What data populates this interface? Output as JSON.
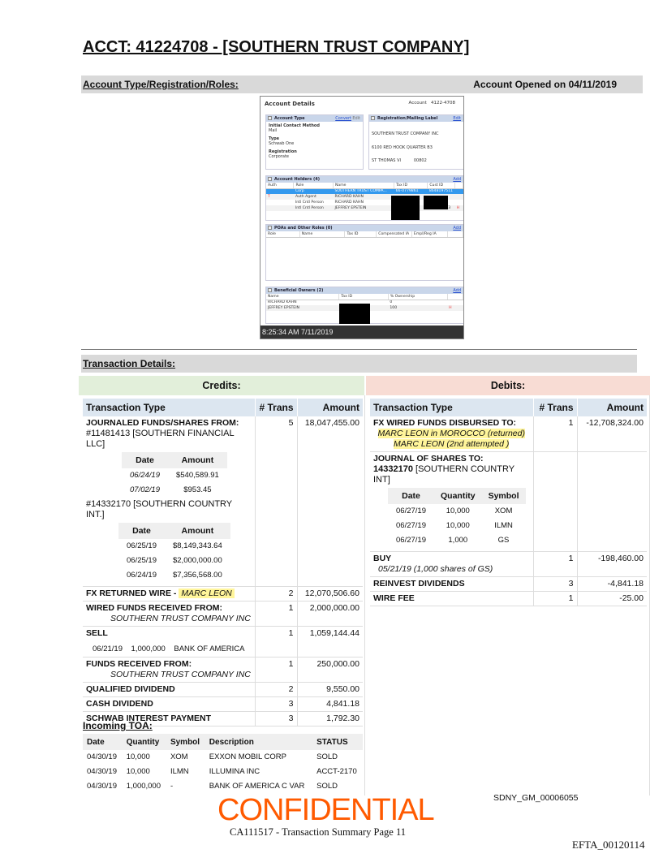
{
  "title": "ACCT: 41224708 - [SOUTHERN TRUST COMPANY]",
  "account_bar": {
    "label": "Account Type/Registration/Roles:",
    "opened": "Account Opened on 04/11/2019"
  },
  "screenshot": {
    "heading": "Account Details",
    "account_label": "Account",
    "account_no": "4122-4708",
    "account_type": {
      "title": "Account Type",
      "convert": "Convert",
      "edit": "Edit",
      "fields": [
        {
          "k": "Initial Contact Method",
          "v": "Mail"
        },
        {
          "k": "Type",
          "v": "Schwab One"
        },
        {
          "k": "Registration",
          "v": "Corporate"
        }
      ]
    },
    "registration": {
      "title": "Registration/Mailing Label",
      "edit": "Edit",
      "lines": [
        "SOUTHERN TRUST COMPANY INC",
        "6100 RED HOOK QUARTER B3",
        "ST THOMAS VI          00802"
      ]
    },
    "holders": {
      "title": "Account Holders (4)",
      "add": "Add",
      "cols": [
        "Auth",
        "Role",
        "Name",
        "Tax ID",
        "Cust ID"
      ],
      "rows": [
        [
          "",
          "Corp",
          "SOUTHERN TRUST COMPA...",
          "66-0779861",
          "8648197511",
          ""
        ],
        [
          "T",
          "Auth Agent",
          "RICHARD KAHN",
          "",
          "",
          ""
        ],
        [
          "",
          "Intl Cntl Person",
          "RICHARD KAHN",
          "",
          "",
          ""
        ],
        [
          "",
          "Intl Cntl Person",
          "JEFFREY EPSTEIN",
          "",
          "561086163",
          "H"
        ]
      ]
    },
    "poas": {
      "title": "POAs and Other Roles (0)",
      "add": "Add",
      "cols": [
        "Role",
        "Name",
        "Tax ID",
        "Compensated IA",
        "Empl/Reg IA"
      ]
    },
    "owners": {
      "title": "Beneficial Owners (2)",
      "add": "Add",
      "cols": [
        "Name",
        "Tax ID",
        "% Ownership"
      ],
      "rows": [
        [
          "RICHARD KAHN",
          "",
          "0",
          ""
        ],
        [
          "JEFFREY EPSTEIN",
          "",
          "100",
          "H"
        ]
      ]
    },
    "timestamp": "8:25:34 AM 7/11/2019"
  },
  "tx_bar": "Transaction Details:",
  "credits": {
    "header": "Credits:",
    "cols": [
      "Transaction Type",
      "# Trans",
      "Amount"
    ],
    "journaled": {
      "title": "JOURNALED FUNDS/SHARES FROM:",
      "n": "5",
      "amount": "18,047,455.00",
      "acct1": "#11481413 [SOUTHERN FINANCIAL LLC]",
      "sub_cols": [
        "Date",
        "Amount"
      ],
      "acct1_rows": [
        [
          "06/24/19",
          "$540,589.91"
        ],
        [
          "07/02/19",
          "$953.45"
        ]
      ],
      "acct2": "#14332170 [SOUTHERN COUNTRY INT.]",
      "acct2_rows": [
        [
          "06/25/19",
          "$8,149,343.64"
        ],
        [
          "06/25/19",
          "$2,000,000.00"
        ],
        [
          "06/24/19",
          "$7,356,568.00"
        ]
      ]
    },
    "fx_returned": {
      "title": "FX RETURNED WIRE - ",
      "name": "MARC LEON",
      "n": "2",
      "amount": "12,070,506.60"
    },
    "wired": {
      "title": "WIRED FUNDS RECEIVED FROM:",
      "sub": "SOUTHERN TRUST COMPANY INC",
      "n": "1",
      "amount": "2,000,000.00"
    },
    "sell": {
      "title": "SELL",
      "date": "06/21/19",
      "qty": "1,000,000",
      "desc": "BANK OF AMERICA",
      "n": "1",
      "amount": "1,059,144.44"
    },
    "funds": {
      "title": "FUNDS RECEIVED FROM:",
      "sub": "SOUTHERN TRUST COMPANY INC",
      "n": "1",
      "amount": "250,000.00"
    },
    "simple": [
      {
        "title": "QUALIFIED DIVIDEND",
        "n": "2",
        "amount": "9,550.00"
      },
      {
        "title": "CASH DIVIDEND",
        "n": "3",
        "amount": "4,841.18"
      },
      {
        "title": "SCHWAB INTEREST PAYMENT",
        "n": "3",
        "amount": "1,792.30"
      }
    ]
  },
  "debits": {
    "header": "Debits:",
    "cols": [
      "Transaction Type",
      "# Trans",
      "Amount"
    ],
    "fx_wired": {
      "title": "FX WIRED FUNDS DISBURSED TO:",
      "line1": "MARC LEON in MOROCCO (returned)",
      "line2": "MARC LEON (2nd attempted )",
      "n": "1",
      "amount": "-12,708,324.00"
    },
    "journal": {
      "title": "JOURNAL OF SHARES TO:",
      "acct": "14332170",
      "acct_name": " [SOUTHERN COUNTRY INT]",
      "sub_cols": [
        "Date",
        "Quantity",
        "Symbol"
      ],
      "rows": [
        [
          "06/27/19",
          "10,000",
          "XOM"
        ],
        [
          "06/27/19",
          "10,000",
          "ILMN"
        ],
        [
          "06/27/19",
          "1,000",
          "GS"
        ]
      ]
    },
    "buy": {
      "title": "BUY",
      "sub": "05/21/19 (1,000 shares of GS)",
      "n": "1",
      "amount": "-198,460.00"
    },
    "simple": [
      {
        "title": "REINVEST DIVIDENDS",
        "n": "3",
        "amount": "-4,841.18"
      },
      {
        "title": "WIRE FEE",
        "n": "1",
        "amount": "-25.00"
      }
    ]
  },
  "toa": {
    "title": "Incoming TOA:",
    "cols": [
      "Date",
      "Quantity",
      "Symbol",
      "Description",
      "STATUS"
    ],
    "rows": [
      [
        "04/30/19",
        "10,000",
        "XOM",
        "EXXON MOBIL CORP",
        "SOLD"
      ],
      [
        "04/30/19",
        "10,000",
        "ILMN",
        "ILLUMINA INC",
        "ACCT-2170"
      ],
      [
        "04/30/19",
        "1,000,000",
        "-",
        "BANK OF AMERICA C VAR",
        "SOLD"
      ]
    ]
  },
  "footer": {
    "confidential": "CONFIDENTIAL",
    "page": "CA111517 - Transaction Summary  Page 11",
    "sdny": "SDNY_GM_00006055",
    "efta": "EFTA_00120114"
  },
  "colors": {
    "credits_bg": "#e2efda",
    "debits_bg": "#f8dcd4",
    "header_bg": "#dce6f0",
    "highlight": "#fff59a",
    "confidential": "#ff5a00"
  }
}
